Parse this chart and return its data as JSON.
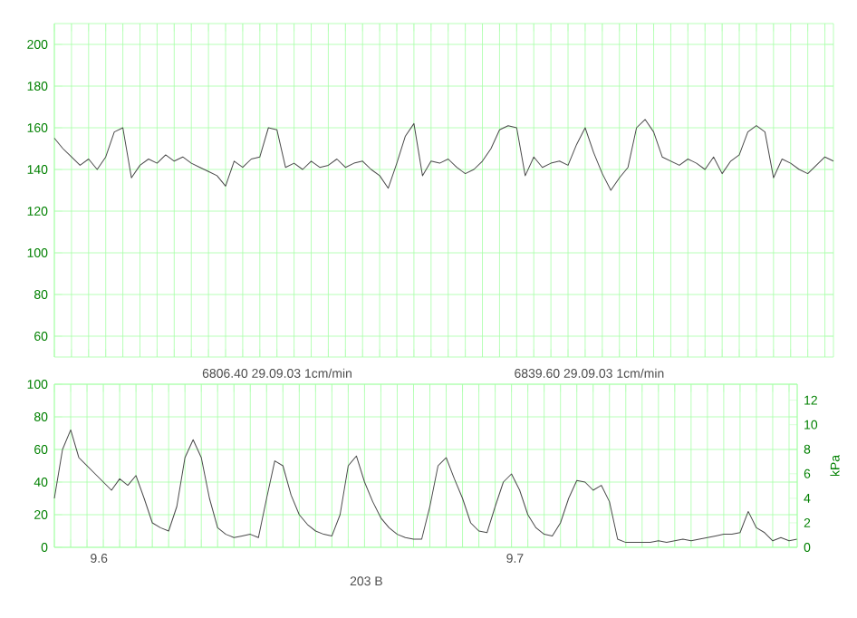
{
  "chart_data": [
    {
      "type": "line",
      "categories": [
        null,
        null,
        null,
        null,
        null,
        null,
        null,
        null,
        null,
        null,
        null,
        null,
        null,
        null,
        null,
        null,
        null,
        null,
        null,
        null,
        null,
        null,
        null,
        null,
        null,
        null,
        null,
        null,
        null,
        null,
        null,
        null,
        null,
        null,
        null,
        null,
        null,
        null,
        null,
        null,
        null,
        null,
        null,
        null,
        null,
        null,
        null,
        null,
        null,
        null,
        null,
        null,
        null,
        null,
        null,
        null,
        null,
        null,
        null,
        null,
        null,
        null,
        null,
        null,
        null,
        null,
        null,
        null,
        null,
        null,
        null,
        null,
        null,
        null,
        null,
        null,
        null,
        null,
        null,
        null,
        null,
        null,
        null,
        null,
        null,
        null,
        null,
        null,
        null,
        null,
        null,
        null
      ],
      "series": [
        {
          "color": "#4a4a4a",
          "values": [
            155,
            150,
            146,
            142,
            145,
            140,
            146,
            158,
            160,
            136,
            142,
            145,
            143,
            147,
            144,
            146,
            143,
            141,
            139,
            137,
            132,
            144,
            141,
            145,
            146,
            160,
            159,
            141,
            143,
            140,
            144,
            141,
            142,
            145,
            141,
            143,
            144,
            140,
            137,
            131,
            143,
            156,
            162,
            137,
            144,
            143,
            145,
            141,
            138,
            140,
            144,
            150,
            159,
            161,
            160,
            137,
            146,
            141,
            143,
            144,
            142,
            152,
            160,
            148,
            138,
            130,
            136,
            141,
            160,
            164,
            158,
            146,
            144,
            142,
            145,
            143,
            140,
            146,
            138,
            144,
            147,
            158,
            161,
            158,
            136,
            145,
            143,
            140,
            138,
            142,
            146,
            144
          ]
        }
      ],
      "ylim": [
        50,
        210
      ],
      "yticks": [
        60,
        80,
        100,
        120,
        140,
        160,
        180,
        200
      ],
      "grid": true,
      "tick_labels": "y"
    },
    {
      "type": "line",
      "categories": [
        null,
        null,
        null,
        null,
        null,
        null,
        null,
        null,
        null,
        null,
        null,
        null,
        null,
        null,
        null,
        null,
        null,
        null,
        null,
        null,
        null,
        null,
        null,
        null,
        null,
        null,
        null,
        null,
        null,
        null,
        null,
        null,
        null,
        null,
        null,
        null,
        null,
        null,
        null,
        null,
        null,
        null,
        null,
        null,
        null,
        null,
        null,
        null,
        null,
        null,
        null,
        null,
        null,
        null,
        null,
        null,
        null,
        null,
        null,
        null,
        null,
        null,
        null,
        null,
        null,
        null,
        null,
        null,
        null,
        null,
        null,
        null,
        null,
        null,
        null,
        null,
        null,
        null,
        null,
        null,
        null,
        null,
        null,
        null,
        null,
        null,
        null,
        null,
        null,
        null,
        null,
        null
      ],
      "series": [
        {
          "color": "#4a4a4a",
          "values": [
            30,
            60,
            72,
            55,
            50,
            45,
            40,
            35,
            42,
            38,
            44,
            30,
            15,
            12,
            10,
            25,
            55,
            66,
            55,
            30,
            12,
            8,
            6,
            7,
            8,
            6,
            30,
            53,
            50,
            32,
            20,
            14,
            10,
            8,
            7,
            20,
            50,
            56,
            40,
            28,
            18,
            12,
            8,
            6,
            5,
            5,
            25,
            50,
            55,
            42,
            30,
            15,
            10,
            9,
            25,
            40,
            45,
            35,
            20,
            12,
            8,
            7,
            15,
            30,
            41,
            40,
            35,
            38,
            28,
            5,
            3,
            3,
            3,
            3,
            4,
            3,
            4,
            5,
            4,
            5,
            6,
            7,
            8,
            8,
            9,
            22,
            12,
            9,
            4,
            6,
            4,
            5
          ]
        }
      ],
      "ylim": [
        0,
        100
      ],
      "yticks": [
        0,
        20,
        40,
        60,
        80,
        100
      ],
      "y2lim": [
        0,
        13.3
      ],
      "y2ticks": [
        0,
        2,
        4,
        6,
        8,
        10,
        12
      ],
      "y2label": "kPa",
      "grid": true,
      "tick_labels": "y",
      "annotations": [
        "6806.40  29.09.03  1cm/min",
        "6839.60  29.09.03  1cm/min",
        "9.6",
        "9.7",
        "203 B"
      ]
    }
  ]
}
